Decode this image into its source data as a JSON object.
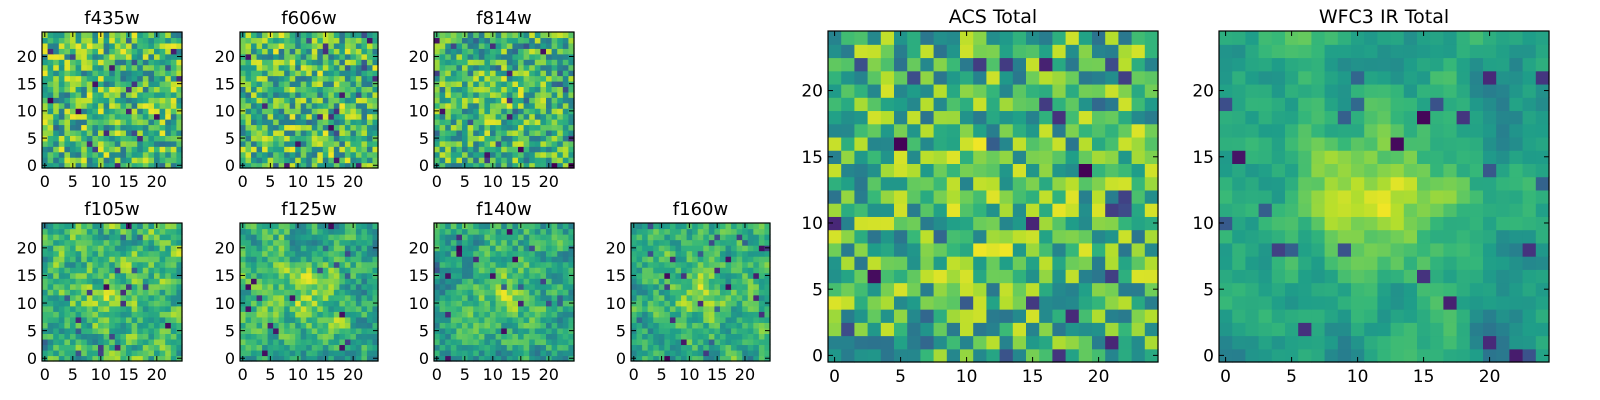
{
  "chart_data": [
    {
      "type": "heatmap",
      "title": "f435w",
      "xticks": [
        0,
        5,
        10,
        15,
        20
      ],
      "yticks": [
        0,
        5,
        10,
        15,
        20
      ],
      "xlim": [
        -0.5,
        24.5
      ],
      "ylim": [
        -0.5,
        24.5
      ],
      "grid_size": 25,
      "grid": false,
      "colormap": "viridis",
      "seed": 11,
      "smooth": 0,
      "center_peak": 0.0
    },
    {
      "type": "heatmap",
      "title": "f606w",
      "xticks": [
        0,
        5,
        10,
        15,
        20
      ],
      "yticks": [
        0,
        5,
        10,
        15,
        20
      ],
      "xlim": [
        -0.5,
        24.5
      ],
      "ylim": [
        -0.5,
        24.5
      ],
      "grid_size": 25,
      "grid": false,
      "colormap": "viridis",
      "seed": 23,
      "smooth": 0,
      "center_peak": 0.0
    },
    {
      "type": "heatmap",
      "title": "f814w",
      "xticks": [
        0,
        5,
        10,
        15,
        20
      ],
      "yticks": [
        0,
        5,
        10,
        15,
        20
      ],
      "xlim": [
        -0.5,
        24.5
      ],
      "ylim": [
        -0.5,
        24.5
      ],
      "grid_size": 25,
      "grid": false,
      "colormap": "viridis",
      "seed": 37,
      "smooth": 0,
      "center_peak": 0.15
    },
    {
      "type": "heatmap",
      "title": "f105w",
      "xticks": [
        0,
        5,
        10,
        15,
        20
      ],
      "yticks": [
        0,
        5,
        10,
        15,
        20
      ],
      "xlim": [
        -0.5,
        24.5
      ],
      "ylim": [
        -0.5,
        24.5
      ],
      "grid_size": 25,
      "grid": false,
      "colormap": "viridis",
      "seed": 41,
      "smooth": 1,
      "center_peak": 0.2
    },
    {
      "type": "heatmap",
      "title": "f125w",
      "xticks": [
        0,
        5,
        10,
        15,
        20
      ],
      "yticks": [
        0,
        5,
        10,
        15,
        20
      ],
      "xlim": [
        -0.5,
        24.5
      ],
      "ylim": [
        -0.5,
        24.5
      ],
      "grid_size": 25,
      "grid": false,
      "colormap": "viridis",
      "seed": 53,
      "smooth": 1,
      "center_peak": 0.25
    },
    {
      "type": "heatmap",
      "title": "f140w",
      "xticks": [
        0,
        5,
        10,
        15,
        20
      ],
      "yticks": [
        0,
        5,
        10,
        15,
        20
      ],
      "xlim": [
        -0.5,
        24.5
      ],
      "ylim": [
        -0.5,
        24.5
      ],
      "grid_size": 25,
      "grid": false,
      "colormap": "viridis",
      "seed": 67,
      "smooth": 1,
      "center_peak": 0.3
    },
    {
      "type": "heatmap",
      "title": "f160w",
      "xticks": [
        0,
        5,
        10,
        15,
        20
      ],
      "yticks": [
        0,
        5,
        10,
        15,
        20
      ],
      "xlim": [
        -0.5,
        24.5
      ],
      "ylim": [
        -0.5,
        24.5
      ],
      "grid_size": 25,
      "grid": false,
      "colormap": "viridis",
      "seed": 79,
      "smooth": 1,
      "center_peak": 0.3
    },
    {
      "type": "heatmap",
      "title": "ACS Total",
      "xticks": [
        0,
        5,
        10,
        15,
        20
      ],
      "yticks": [
        0,
        5,
        10,
        15,
        20
      ],
      "xlim": [
        -0.5,
        24.5
      ],
      "ylim": [
        -0.5,
        24.5
      ],
      "grid_size": 25,
      "grid": false,
      "colormap": "viridis",
      "seed": 97,
      "smooth": 0,
      "center_peak": 0.1
    },
    {
      "type": "heatmap",
      "title": "WFC3 IR Total",
      "xticks": [
        0,
        5,
        10,
        15,
        20
      ],
      "yticks": [
        0,
        5,
        10,
        15,
        20
      ],
      "xlim": [
        -0.5,
        24.5
      ],
      "ylim": [
        -0.5,
        24.5
      ],
      "grid_size": 25,
      "grid": false,
      "colormap": "viridis",
      "seed": 131,
      "smooth": 2,
      "center_peak": 0.55
    }
  ]
}
